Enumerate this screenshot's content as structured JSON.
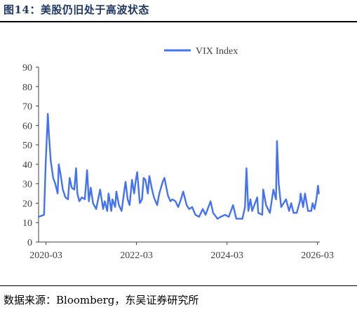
{
  "figure": {
    "title": "图14：美股仍旧处于高波状态",
    "source": "数据来源：Bloomberg，东吴证券研究所"
  },
  "chart_data": {
    "type": "line",
    "series": [
      {
        "name": "VIX Index",
        "color": "#4472f4",
        "points": [
          [
            "2020-01-02",
            13
          ],
          [
            "2020-02-14",
            14
          ],
          [
            "2020-02-27",
            40
          ],
          [
            "2020-03-16",
            66
          ],
          [
            "2020-03-25",
            55
          ],
          [
            "2020-04-08",
            42
          ],
          [
            "2020-04-28",
            33
          ],
          [
            "2020-05-15",
            30
          ],
          [
            "2020-06-03",
            25
          ],
          [
            "2020-06-12",
            40
          ],
          [
            "2020-06-26",
            35
          ],
          [
            "2020-07-15",
            27
          ],
          [
            "2020-08-05",
            23
          ],
          [
            "2020-08-25",
            22
          ],
          [
            "2020-09-08",
            33
          ],
          [
            "2020-09-25",
            28
          ],
          [
            "2020-10-15",
            27
          ],
          [
            "2020-10-30",
            38
          ],
          [
            "2020-11-09",
            25
          ],
          [
            "2020-11-25",
            21
          ],
          [
            "2020-12-15",
            23
          ],
          [
            "2021-01-08",
            22
          ],
          [
            "2021-01-27",
            37
          ],
          [
            "2021-02-10",
            21
          ],
          [
            "2021-02-25",
            28
          ],
          [
            "2021-03-15",
            20
          ],
          [
            "2021-04-10",
            17
          ],
          [
            "2021-05-12",
            27
          ],
          [
            "2021-06-05",
            17
          ],
          [
            "2021-06-18",
            21
          ],
          [
            "2021-07-08",
            16
          ],
          [
            "2021-07-19",
            25
          ],
          [
            "2021-08-10",
            16
          ],
          [
            "2021-08-19",
            22
          ],
          [
            "2021-09-10",
            18
          ],
          [
            "2021-09-20",
            26
          ],
          [
            "2021-10-10",
            19
          ],
          [
            "2021-11-01",
            16
          ],
          [
            "2021-11-26",
            28
          ],
          [
            "2021-12-03",
            31
          ],
          [
            "2021-12-20",
            22
          ],
          [
            "2022-01-05",
            19
          ],
          [
            "2022-01-24",
            32
          ],
          [
            "2022-02-10",
            25
          ],
          [
            "2022-02-24",
            32
          ],
          [
            "2022-03-07",
            36
          ],
          [
            "2022-03-28",
            20
          ],
          [
            "2022-04-15",
            22
          ],
          [
            "2022-04-28",
            33
          ],
          [
            "2022-05-12",
            32
          ],
          [
            "2022-06-01",
            25
          ],
          [
            "2022-06-13",
            34
          ],
          [
            "2022-07-05",
            27
          ],
          [
            "2022-07-20",
            23
          ],
          [
            "2022-08-15",
            19
          ],
          [
            "2022-09-01",
            25
          ],
          [
            "2022-09-29",
            31
          ],
          [
            "2022-10-13",
            33
          ],
          [
            "2022-11-10",
            24
          ],
          [
            "2022-11-30",
            21
          ],
          [
            "2022-12-15",
            22
          ],
          [
            "2023-01-10",
            21
          ],
          [
            "2023-02-01",
            18
          ],
          [
            "2023-02-23",
            22
          ],
          [
            "2023-03-13",
            26
          ],
          [
            "2023-04-10",
            19
          ],
          [
            "2023-05-01",
            17
          ],
          [
            "2023-05-25",
            18
          ],
          [
            "2023-06-20",
            14
          ],
          [
            "2023-07-20",
            13
          ],
          [
            "2023-08-18",
            17
          ],
          [
            "2023-09-10",
            14
          ],
          [
            "2023-10-20",
            21
          ],
          [
            "2023-11-10",
            15
          ],
          [
            "2023-12-15",
            12
          ],
          [
            "2024-01-10",
            13
          ],
          [
            "2024-02-15",
            14
          ],
          [
            "2024-03-15",
            13
          ],
          [
            "2024-04-19",
            19
          ],
          [
            "2024-05-15",
            12
          ],
          [
            "2024-07-03",
            12
          ],
          [
            "2024-07-24",
            18
          ],
          [
            "2024-08-05",
            38
          ],
          [
            "2024-08-20",
            16
          ],
          [
            "2024-09-06",
            22
          ],
          [
            "2024-09-20",
            16
          ],
          [
            "2024-10-31",
            23
          ],
          [
            "2024-11-08",
            15
          ],
          [
            "2024-12-10",
            14
          ],
          [
            "2024-12-18",
            27
          ],
          [
            "2025-01-10",
            19
          ],
          [
            "2025-02-10",
            15
          ],
          [
            "2025-03-10",
            27
          ],
          [
            "2025-03-31",
            22
          ],
          [
            "2025-04-08",
            52
          ],
          [
            "2025-04-22",
            30
          ],
          [
            "2025-05-12",
            18
          ],
          [
            "2025-06-20",
            22
          ],
          [
            "2025-07-15",
            16
          ],
          [
            "2025-08-01",
            20
          ],
          [
            "2025-08-20",
            15
          ],
          [
            "2025-09-15",
            15
          ],
          [
            "2025-10-10",
            21
          ],
          [
            "2025-10-16",
            25
          ],
          [
            "2025-11-05",
            18
          ],
          [
            "2025-11-20",
            25
          ],
          [
            "2025-12-15",
            16
          ],
          [
            "2026-01-10",
            16
          ],
          [
            "2026-01-20",
            20
          ],
          [
            "2026-02-05",
            17
          ],
          [
            "2026-02-20",
            22
          ],
          [
            "2026-03-05",
            29
          ],
          [
            "2026-03-12",
            25
          ]
        ]
      }
    ],
    "x_ticks": [
      "2020-03",
      "2022-03",
      "2024-03",
      "2026-03"
    ],
    "x_range": [
      "2020-01-01",
      "2026-03-20"
    ],
    "y_ticks": [
      0,
      10,
      20,
      30,
      40,
      50,
      60,
      70,
      80,
      90
    ],
    "ylim": [
      0,
      90
    ],
    "grid": false,
    "legend": "top-center"
  }
}
